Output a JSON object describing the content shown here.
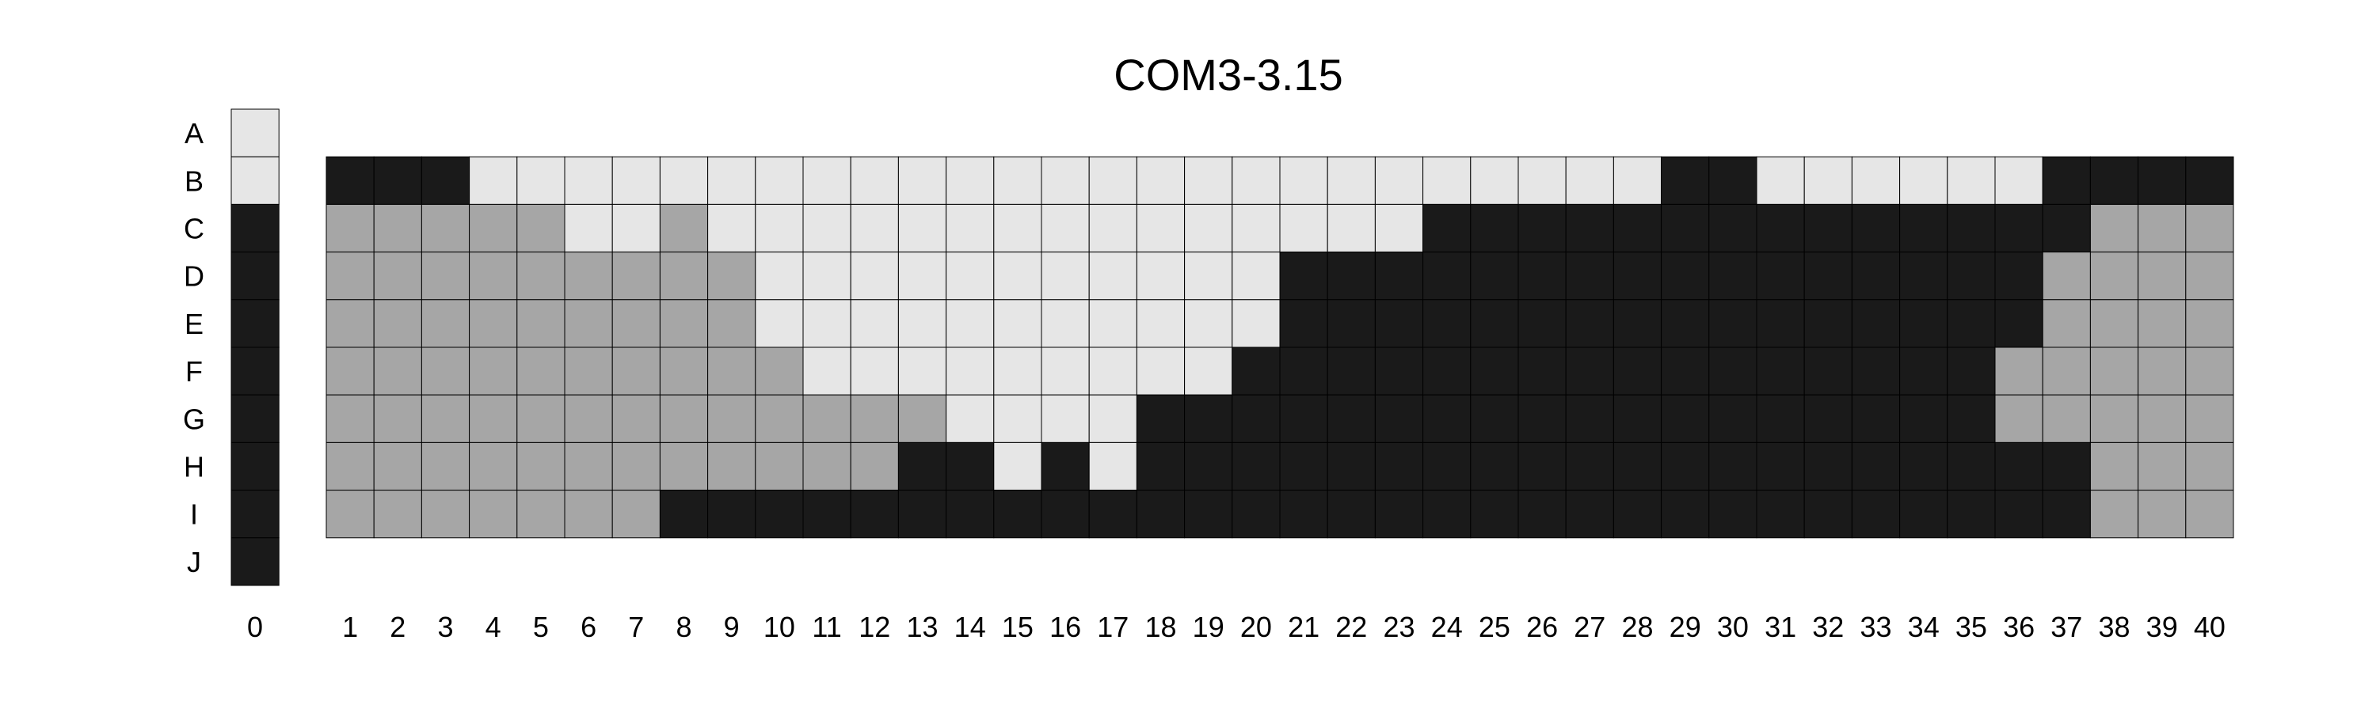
{
  "chart_data": {
    "type": "heatmap",
    "title": "COM3-3.15",
    "row_labels": [
      "A",
      "B",
      "C",
      "D",
      "E",
      "F",
      "G",
      "H",
      "I",
      "J"
    ],
    "column_zero_label": "0",
    "column_labels": [
      "1",
      "2",
      "3",
      "4",
      "5",
      "6",
      "7",
      "8",
      "9",
      "10",
      "11",
      "12",
      "13",
      "14",
      "15",
      "16",
      "17",
      "18",
      "19",
      "20",
      "21",
      "22",
      "23",
      "24",
      "25",
      "26",
      "27",
      "28",
      "29",
      "30",
      "31",
      "32",
      "33",
      "34",
      "35",
      "36",
      "37",
      "38",
      "39",
      "40"
    ],
    "color_scale": {
      "0": "#e6e6e6",
      "1": "#a6a6a6",
      "2": "#1a1a1a"
    },
    "column_zero_values": [
      0,
      0,
      2,
      2,
      2,
      2,
      2,
      2,
      2,
      2
    ],
    "grid_rows": [
      "B",
      "C",
      "D",
      "E",
      "F",
      "G",
      "H",
      "I"
    ],
    "grid_values": [
      [
        2,
        2,
        2,
        0,
        0,
        0,
        0,
        0,
        0,
        0,
        0,
        0,
        0,
        0,
        0,
        0,
        0,
        0,
        0,
        0,
        0,
        0,
        0,
        0,
        0,
        0,
        0,
        0,
        2,
        2,
        0,
        0,
        0,
        0,
        0,
        0,
        2,
        2,
        2,
        2
      ],
      [
        1,
        1,
        1,
        1,
        1,
        0,
        0,
        1,
        0,
        0,
        0,
        0,
        0,
        0,
        0,
        0,
        0,
        0,
        0,
        0,
        0,
        0,
        0,
        2,
        2,
        2,
        2,
        2,
        2,
        2,
        2,
        2,
        2,
        2,
        2,
        2,
        2,
        1,
        1,
        1
      ],
      [
        1,
        1,
        1,
        1,
        1,
        1,
        1,
        1,
        1,
        0,
        0,
        0,
        0,
        0,
        0,
        0,
        0,
        0,
        0,
        0,
        2,
        2,
        2,
        2,
        2,
        2,
        2,
        2,
        2,
        2,
        2,
        2,
        2,
        2,
        2,
        2,
        1,
        1,
        1,
        1
      ],
      [
        1,
        1,
        1,
        1,
        1,
        1,
        1,
        1,
        1,
        0,
        0,
        0,
        0,
        0,
        0,
        0,
        0,
        0,
        0,
        0,
        2,
        2,
        2,
        2,
        2,
        2,
        2,
        2,
        2,
        2,
        2,
        2,
        2,
        2,
        2,
        2,
        1,
        1,
        1,
        1
      ],
      [
        1,
        1,
        1,
        1,
        1,
        1,
        1,
        1,
        1,
        1,
        0,
        0,
        0,
        0,
        0,
        0,
        0,
        0,
        0,
        2,
        2,
        2,
        2,
        2,
        2,
        2,
        2,
        2,
        2,
        2,
        2,
        2,
        2,
        2,
        2,
        1,
        1,
        1,
        1,
        1
      ],
      [
        1,
        1,
        1,
        1,
        1,
        1,
        1,
        1,
        1,
        1,
        1,
        1,
        1,
        0,
        0,
        0,
        0,
        2,
        2,
        2,
        2,
        2,
        2,
        2,
        2,
        2,
        2,
        2,
        2,
        2,
        2,
        2,
        2,
        2,
        2,
        1,
        1,
        1,
        1,
        1
      ],
      [
        1,
        1,
        1,
        1,
        1,
        1,
        1,
        1,
        1,
        1,
        1,
        1,
        2,
        2,
        0,
        2,
        0,
        2,
        2,
        2,
        2,
        2,
        2,
        2,
        2,
        2,
        2,
        2,
        2,
        2,
        2,
        2,
        2,
        2,
        2,
        2,
        2,
        1,
        1,
        1
      ],
      [
        1,
        1,
        1,
        1,
        1,
        1,
        1,
        2,
        2,
        2,
        2,
        2,
        2,
        2,
        2,
        2,
        2,
        2,
        2,
        2,
        2,
        2,
        2,
        2,
        2,
        2,
        2,
        2,
        2,
        2,
        2,
        2,
        2,
        2,
        2,
        2,
        2,
        1,
        1,
        1
      ]
    ]
  }
}
